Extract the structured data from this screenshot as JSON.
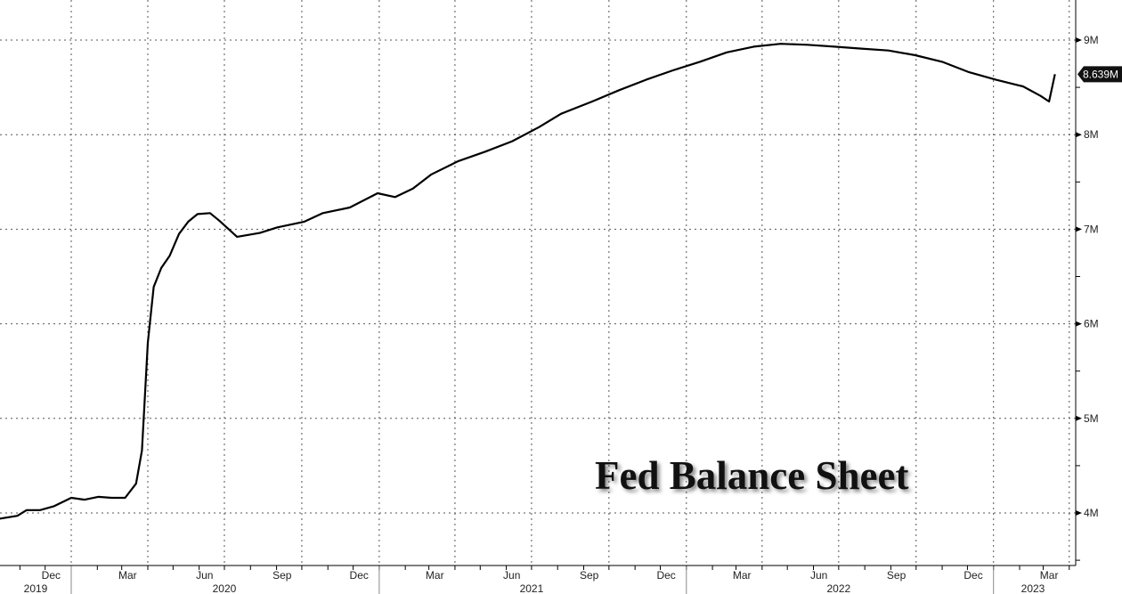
{
  "chart_data": {
    "type": "line",
    "title": "Fed Balance Sheet",
    "xlabel": "",
    "ylabel": "",
    "ylim": [
      3.5,
      9.5
    ],
    "yticks": [
      4,
      5,
      6,
      7,
      8,
      9
    ],
    "ytick_labels": [
      "4M",
      "5M",
      "6M",
      "7M",
      "8M",
      "9M"
    ],
    "grid": true,
    "last_value_label": "8.639M",
    "line_color": "#000000",
    "month_labels": [
      {
        "label": "Dec",
        "month": "2019-12"
      },
      {
        "label": "Mar",
        "month": "2020-03"
      },
      {
        "label": "Jun",
        "month": "2020-06"
      },
      {
        "label": "Sep",
        "month": "2020-09"
      },
      {
        "label": "Dec",
        "month": "2020-12"
      },
      {
        "label": "Mar",
        "month": "2021-03"
      },
      {
        "label": "Jun",
        "month": "2021-06"
      },
      {
        "label": "Sep",
        "month": "2021-09"
      },
      {
        "label": "Dec",
        "month": "2021-12"
      },
      {
        "label": "Mar",
        "month": "2022-03"
      },
      {
        "label": "Jun",
        "month": "2022-06"
      },
      {
        "label": "Sep",
        "month": "2022-09"
      },
      {
        "label": "Dec",
        "month": "2022-12"
      },
      {
        "label": "Mar",
        "month": "2023-03"
      }
    ],
    "year_labels": [
      "2019",
      "2020",
      "2021",
      "2022",
      "2023"
    ],
    "series": [
      {
        "x": [
          "2019-10-08",
          "2019-10-29",
          "2019-11-09",
          "2019-11-25",
          "2019-12-11",
          "2020-01-01",
          "2020-01-17",
          "2020-02-02",
          "2020-02-18",
          "2020-03-05",
          "2020-03-18",
          "2020-03-25",
          "2020-04-01",
          "2020-04-08",
          "2020-04-17",
          "2020-04-27",
          "2020-05-08",
          "2020-05-19",
          "2020-05-30",
          "2020-06-14",
          "2020-06-25",
          "2020-07-16",
          "2020-08-12",
          "2020-09-02",
          "2020-10-04",
          "2020-10-26",
          "2020-11-27",
          "2020-12-30",
          "2021-01-20",
          "2021-02-10",
          "2021-03-04",
          "2021-04-05",
          "2021-05-07",
          "2021-06-08",
          "2021-07-10",
          "2021-08-05",
          "2021-09-11",
          "2021-10-13",
          "2021-11-14",
          "2021-12-16",
          "2022-01-17",
          "2022-02-18",
          "2022-03-22",
          "2022-04-23",
          "2022-05-25",
          "2022-06-26",
          "2022-07-28",
          "2022-08-29",
          "2022-09-30",
          "2022-11-01",
          "2022-12-03",
          "2023-01-04",
          "2023-02-05",
          "2023-02-26",
          "2023-03-08",
          "2023-03-15"
        ],
        "y": [
          3.94,
          3.97,
          4.03,
          4.03,
          4.07,
          4.16,
          4.14,
          4.17,
          4.16,
          4.16,
          4.31,
          4.66,
          5.8,
          6.39,
          6.59,
          6.72,
          6.95,
          7.08,
          7.16,
          7.17,
          7.09,
          6.92,
          6.96,
          7.02,
          7.08,
          7.17,
          7.23,
          7.38,
          7.34,
          7.43,
          7.58,
          7.72,
          7.82,
          7.93,
          8.08,
          8.22,
          8.35,
          8.47,
          8.58,
          8.68,
          8.77,
          8.87,
          8.93,
          8.96,
          8.95,
          8.93,
          8.91,
          8.89,
          8.84,
          8.77,
          8.66,
          8.58,
          8.51,
          8.41,
          8.35,
          8.639
        ]
      }
    ]
  }
}
